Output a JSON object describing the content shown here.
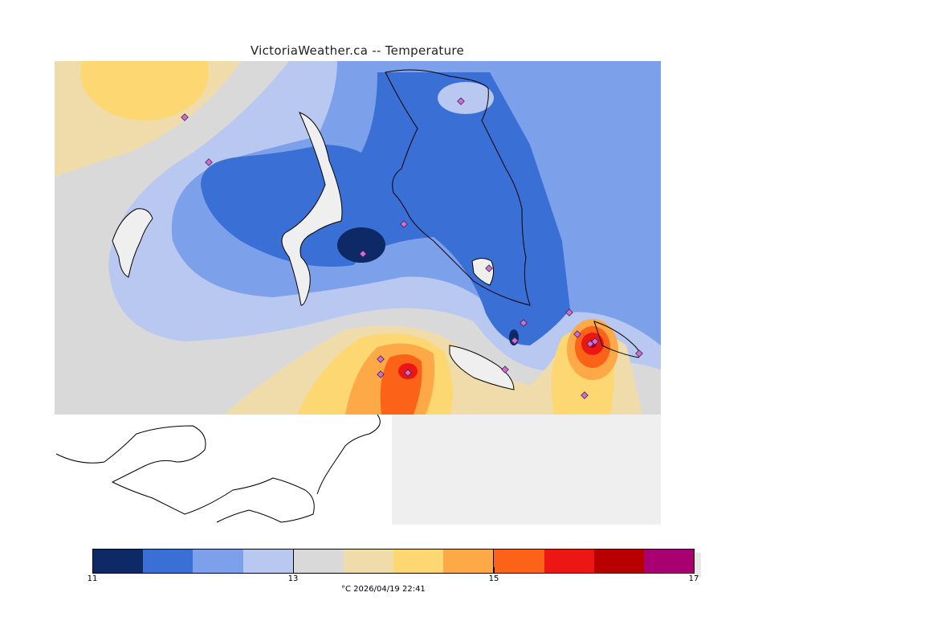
{
  "title": "VictoriaWeather.ca -- Temperature",
  "units_line": "°C  2026/04/19 22:41",
  "legend": {
    "min": 11,
    "max": 17,
    "tick_labels": [
      "11",
      "13",
      "15",
      "17"
    ],
    "bins": [
      "#0d2a66",
      "#3a6fd6",
      "#7da0ea",
      "#b9c8f0",
      "#d9d9d9",
      "#f0dcaa",
      "#fdd771",
      "#fda948",
      "#fd6219",
      "#ec1614",
      "#b80000",
      "#a80070"
    ]
  },
  "colors": {
    "background_map": "#efefef",
    "no_data_white": "#ffffff",
    "station_marker": "#cf6fd6",
    "coastline": "#000000"
  },
  "stations_count": 18
}
